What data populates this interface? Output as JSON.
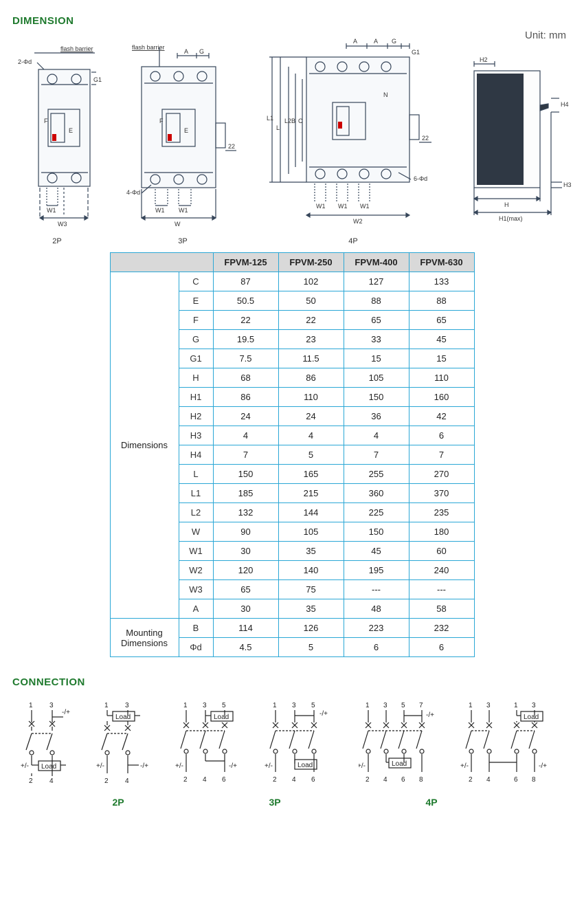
{
  "titles": {
    "dimension": "DIMENSION",
    "connection": "CONNECTION"
  },
  "unit": "Unit: mm",
  "diagram_labels": {
    "flash_barrier": "flash barrier",
    "p2": "2P",
    "p3": "3P",
    "p4": "4P"
  },
  "diagram_dims": {
    "letters_2p": {
      "d": "2-Φd",
      "G1": "G1",
      "F": "F",
      "E": "E",
      "W1": "W1",
      "W3": "W3"
    },
    "letters_3p": {
      "A": "A",
      "G": "G",
      "F": "F",
      "E": "E",
      "d": "4-Φd",
      "W1": "W1",
      "W": "W",
      "t22": "22"
    },
    "letters_4p": {
      "A": "A",
      "G": "G",
      "G1": "G1",
      "N": "N",
      "L1": "L1",
      "L": "L",
      "L2": "L2",
      "B": "B",
      "C": "C",
      "d": "6-Φd",
      "W1": "W1",
      "W2": "W2",
      "t22": "22"
    },
    "letters_side": {
      "H2": "H2",
      "H4": "H4",
      "H3": "H3",
      "H": "H",
      "H1": "H1(max)"
    }
  },
  "table": {
    "headers": [
      "",
      "",
      "FPVM-125",
      "FPVM-250",
      "FPVM-400",
      "FPVM-630"
    ],
    "section1": "Dimensions",
    "section2a": "Mounting",
    "section2b": "Dimensions",
    "rows": [
      [
        "C",
        "87",
        "102",
        "127",
        "133"
      ],
      [
        "E",
        "50.5",
        "50",
        "88",
        "88"
      ],
      [
        "F",
        "22",
        "22",
        "65",
        "65"
      ],
      [
        "G",
        "19.5",
        "23",
        "33",
        "45"
      ],
      [
        "G1",
        "7.5",
        "11.5",
        "15",
        "15"
      ],
      [
        "H",
        "68",
        "86",
        "105",
        "110"
      ],
      [
        "H1",
        "86",
        "110",
        "150",
        "160"
      ],
      [
        "H2",
        "24",
        "24",
        "36",
        "42"
      ],
      [
        "H3",
        "4",
        "4",
        "4",
        "6"
      ],
      [
        "H4",
        "7",
        "5",
        "7",
        "7"
      ],
      [
        "L",
        "150",
        "165",
        "255",
        "270"
      ],
      [
        "L1",
        "185",
        "215",
        "360",
        "370"
      ],
      [
        "L2",
        "132",
        "144",
        "225",
        "235"
      ],
      [
        "W",
        "90",
        "105",
        "150",
        "180"
      ],
      [
        "W1",
        "30",
        "35",
        "45",
        "60"
      ],
      [
        "W2",
        "120",
        "140",
        "195",
        "240"
      ],
      [
        "W3",
        "65",
        "75",
        "---",
        "---"
      ],
      [
        "A",
        "30",
        "35",
        "48",
        "58"
      ]
    ],
    "rows2": [
      [
        "B",
        "114",
        "126",
        "223",
        "232"
      ],
      [
        "Φd",
        "4.5",
        "5",
        "6",
        "6"
      ]
    ]
  },
  "connection": {
    "labels": {
      "p2": "2P",
      "p3": "3P",
      "p4": "4P"
    },
    "text": {
      "load": "Load",
      "pm": "+/-",
      "mp": "-/+"
    },
    "top_nums": {
      "n1": "1",
      "n3": "3",
      "n5": "5",
      "n7": "7"
    },
    "bot_nums": {
      "n2": "2",
      "n4": "4",
      "n6": "6",
      "n8": "8"
    }
  },
  "colors": {
    "accent": "#1f7a2e",
    "tableBorder": "#2aa7d6",
    "headerBg": "#d9d9d9",
    "ink": "#222"
  }
}
